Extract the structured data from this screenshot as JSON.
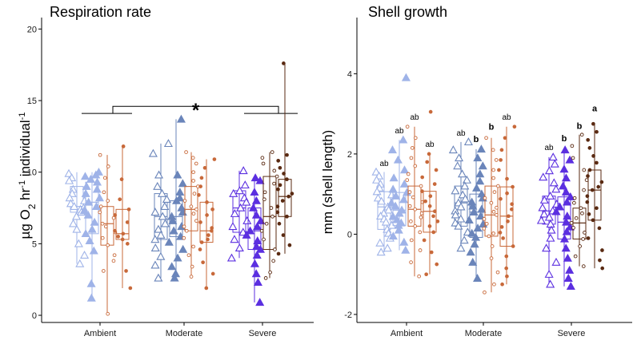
{
  "chart_data": [
    {
      "type": "box",
      "title": "Respiration rate",
      "ylabel": "µg O2 hr-1 individual-1",
      "ylabel_parts": {
        "a": "µg O",
        "b": "2",
        "c": " hr",
        "d": "-1",
        "e": " individual",
        "f": "-1"
      },
      "ylim": [
        -0.5,
        20.8
      ],
      "yticks": [
        0,
        5,
        10,
        15,
        20
      ],
      "categories": [
        "Ambient",
        "Moderate",
        "Severe"
      ],
      "annotation": {
        "text": "*",
        "between": [
          "Ambient",
          "Severe"
        ],
        "y": 14.1,
        "bracket_top": 14.6
      },
      "groups": [
        {
          "category": "Ambient",
          "boxes": [
            {
              "shape": "triangle-open",
              "color": "#9fb3e8",
              "min": 3.6,
              "q1": 7.2,
              "median": 7.6,
              "q3": 9.0,
              "max": 10.0,
              "points": [
                9.9,
                9.6,
                9.4,
                8.8,
                8.5,
                8.2,
                8.0,
                7.8,
                7.6,
                7.5,
                7.4,
                7.2,
                6.9,
                6.4,
                6.0,
                5.0,
                4.2,
                3.6
              ]
            },
            {
              "shape": "triangle-filled",
              "color": "#9fb3e8",
              "min": 1.2,
              "q1": 5.7,
              "median": 7.9,
              "q3": 9.3,
              "max": 10.0,
              "points": [
                10.0,
                9.8,
                9.7,
                9.5,
                9.3,
                9.0,
                8.8,
                8.5,
                8.2,
                7.9,
                7.6,
                7.3,
                7.0,
                6.5,
                6.0,
                5.7,
                5.2,
                4.5,
                2.2,
                1.2
              ]
            },
            {
              "shape": "circle-open",
              "color": "#c8693a",
              "min": 0.1,
              "q1": 4.9,
              "median": 6.4,
              "q3": 7.6,
              "max": 11.2,
              "points": [
                11.2,
                10.4,
                9.6,
                8.6,
                8.0,
                7.6,
                7.2,
                6.8,
                6.4,
                6.2,
                5.8,
                5.4,
                4.9,
                4.2,
                3.8,
                3.1,
                0.1
              ]
            },
            {
              "shape": "circle-filled",
              "color": "#c8693a",
              "min": 1.9,
              "q1": 5.3,
              "median": 5.7,
              "q3": 7.4,
              "max": 11.8,
              "points": [
                11.8,
                9.5,
                8.1,
                7.4,
                7.0,
                6.5,
                5.9,
                5.7,
                5.5,
                5.3,
                5.0,
                3.1,
                1.9
              ]
            }
          ]
        },
        {
          "category": "Moderate",
          "boxes": [
            {
              "shape": "triangle-open",
              "color": "#6a85ba",
              "min": 2.6,
              "q1": 5.3,
              "median": 6.9,
              "q3": 8.5,
              "max": 12.0,
              "points": [
                12.0,
                11.3,
                9.8,
                9.0,
                8.5,
                8.1,
                7.6,
                7.2,
                6.9,
                6.4,
                6.0,
                5.6,
                5.3,
                4.7,
                4.1,
                3.5,
                2.6
              ]
            },
            {
              "shape": "triangle-filled",
              "color": "#6a85ba",
              "min": 2.6,
              "q1": 5.5,
              "median": 6.9,
              "q3": 8.0,
              "max": 13.7,
              "points": [
                13.7,
                9.8,
                9.2,
                8.6,
                8.2,
                8.0,
                7.5,
                7.2,
                6.9,
                6.6,
                6.2,
                5.9,
                5.5,
                5.1,
                4.6,
                4.0,
                3.4,
                2.9,
                2.6
              ]
            },
            {
              "shape": "circle-open",
              "color": "#c8693a",
              "min": 2.7,
              "q1": 5.9,
              "median": 7.4,
              "q3": 9.0,
              "max": 11.4,
              "points": [
                11.4,
                11.0,
                10.6,
                10.0,
                9.4,
                9.0,
                8.5,
                8.0,
                7.6,
                7.4,
                7.1,
                6.6,
                6.2,
                5.9,
                5.4,
                4.8,
                4.2,
                3.4,
                2.7
              ]
            },
            {
              "shape": "circle-filled",
              "color": "#c8693a",
              "min": 1.9,
              "q1": 5.1,
              "median": 5.9,
              "q3": 7.9,
              "max": 10.9,
              "points": [
                10.9,
                10.3,
                9.6,
                9.0,
                8.4,
                7.9,
                7.4,
                7.0,
                6.5,
                6.1,
                5.9,
                5.6,
                5.3,
                5.1,
                4.6,
                3.7,
                2.9,
                1.9
              ]
            }
          ]
        },
        {
          "category": "Severe",
          "boxes": [
            {
              "shape": "triangle-open",
              "color": "#5b2fe0",
              "min": 4.0,
              "q1": 5.8,
              "median": 7.5,
              "q3": 8.7,
              "max": 10.1,
              "points": [
                10.1,
                9.1,
                8.7,
                8.5,
                8.2,
                7.9,
                7.5,
                7.1,
                6.6,
                6.2,
                5.8,
                5.3,
                4.7,
                4.0
              ]
            },
            {
              "shape": "triangle-filled",
              "color": "#5b2fe0",
              "min": 0.9,
              "q1": 4.6,
              "median": 5.9,
              "q3": 7.5,
              "max": 9.6,
              "points": [
                9.6,
                9.4,
                8.6,
                8.0,
                7.5,
                7.0,
                6.6,
                6.2,
                5.9,
                5.6,
                5.2,
                4.8,
                4.6,
                4.2,
                3.6,
                2.9,
                2.3,
                0.9
              ]
            },
            {
              "shape": "circle-open",
              "color": "#5a2a12",
              "min": 2.6,
              "q1": 4.6,
              "median": 6.9,
              "q3": 9.7,
              "max": 11.4,
              "points": [
                11.4,
                11.0,
                10.6,
                10.1,
                9.7,
                9.2,
                8.6,
                8.1,
                7.5,
                6.9,
                6.4,
                5.9,
                5.3,
                4.6,
                3.8,
                3.0,
                2.6
              ]
            },
            {
              "shape": "circle-filled",
              "color": "#5a2a12",
              "min": 4.3,
              "q1": 6.9,
              "median": 8.3,
              "q3": 9.5,
              "max": 17.6,
              "points": [
                17.6,
                11.2,
                10.8,
                10.3,
                9.9,
                9.5,
                9.1,
                8.8,
                8.5,
                8.3,
                8.0,
                7.6,
                7.2,
                6.9,
                6.4,
                5.6,
                4.9,
                4.3
              ]
            }
          ]
        }
      ]
    },
    {
      "type": "box",
      "title": "Shell growth",
      "ylabel": "mm (shell length)",
      "ylim": [
        -2.2,
        5.4
      ],
      "yticks": [
        -2,
        0,
        2,
        4
      ],
      "categories": [
        "Ambient",
        "Moderate",
        "Severe"
      ],
      "groups": [
        {
          "category": "Ambient",
          "boxes": [
            {
              "shape": "triangle-open",
              "color": "#9fb3e8",
              "min": -0.45,
              "q1": 0.12,
              "median": 0.68,
              "q3": 1.06,
              "max": 1.55,
              "letter": "ab",
              "letter_y": 1.7,
              "bold": false,
              "points": [
                1.55,
                1.45,
                1.35,
                1.25,
                1.15,
                1.06,
                0.98,
                0.9,
                0.82,
                0.75,
                0.68,
                0.6,
                0.52,
                0.45,
                0.38,
                0.3,
                0.22,
                0.12,
                0.02,
                -0.1,
                -0.22,
                -0.35,
                -0.45
              ]
            },
            {
              "shape": "triangle-filled",
              "color": "#9fb3e8",
              "min": -0.4,
              "q1": 0.22,
              "median": 0.6,
              "q3": 1.04,
              "max": 2.35,
              "letter": "ab",
              "letter_y": 2.52,
              "bold": false,
              "points": [
                3.9,
                2.35,
                2.1,
                1.85,
                1.6,
                1.4,
                1.25,
                1.12,
                1.04,
                0.95,
                0.86,
                0.78,
                0.7,
                0.6,
                0.52,
                0.44,
                0.36,
                0.28,
                0.22,
                0.1,
                -0.05,
                -0.2,
                -0.4
              ]
            },
            {
              "shape": "circle-open",
              "color": "#c8693a",
              "min": -1.05,
              "q1": 0.2,
              "median": 0.62,
              "q3": 1.2,
              "max": 2.68,
              "letter": "ab",
              "letter_y": 2.85,
              "bold": false,
              "points": [
                2.68,
                2.4,
                2.15,
                1.9,
                1.7,
                1.5,
                1.35,
                1.2,
                1.05,
                0.92,
                0.8,
                0.7,
                0.62,
                0.52,
                0.42,
                0.32,
                0.2,
                0.05,
                -0.15,
                -0.4,
                -0.7,
                -1.05
              ]
            },
            {
              "shape": "circle-filled",
              "color": "#c8693a",
              "min": -1.0,
              "q1": 0.05,
              "median": 0.57,
              "q3": 1.07,
              "max": 2.0,
              "letter": "ab",
              "letter_y": 2.18,
              "bold": false,
              "points": [
                3.05,
                2.0,
                1.8,
                1.6,
                1.42,
                1.25,
                1.07,
                0.95,
                0.82,
                0.7,
                0.57,
                0.45,
                0.32,
                0.2,
                0.05,
                -0.15,
                -0.45,
                -0.75,
                -1.0
              ]
            }
          ]
        },
        {
          "category": "Moderate",
          "boxes": [
            {
              "shape": "triangle-open",
              "color": "#6a85ba",
              "min": -0.35,
              "q1": 0.2,
              "median": 0.78,
              "q3": 1.2,
              "max": 2.3,
              "letter": "ab",
              "letter_y": 2.46,
              "bold": false,
              "points": [
                2.3,
                2.1,
                1.9,
                1.7,
                1.5,
                1.35,
                1.2,
                1.08,
                0.98,
                0.88,
                0.78,
                0.68,
                0.58,
                0.48,
                0.38,
                0.28,
                0.2,
                0.05,
                -0.15,
                -0.35
              ]
            },
            {
              "shape": "triangle-filled",
              "color": "#6a85ba",
              "min": -1.1,
              "q1": -0.08,
              "median": 0.55,
              "q3": 1.0,
              "max": 2.12,
              "letter": "b",
              "letter_y": 2.3,
              "bold": true,
              "points": [
                2.12,
                1.9,
                1.7,
                1.5,
                1.32,
                1.15,
                1.0,
                0.9,
                0.8,
                0.7,
                0.62,
                0.55,
                0.45,
                0.35,
                0.25,
                0.15,
                0.02,
                -0.08,
                -0.25,
                -0.45,
                -0.7,
                -1.1
              ]
            },
            {
              "shape": "circle-open",
              "color": "#c8693a",
              "min": -1.45,
              "q1": -0.05,
              "median": 0.48,
              "q3": 1.2,
              "max": 2.4,
              "letter": "b",
              "letter_y": 2.6,
              "bold": true,
              "points": [
                2.4,
                2.1,
                1.85,
                1.6,
                1.4,
                1.2,
                1.05,
                0.9,
                0.78,
                0.66,
                0.56,
                0.48,
                0.38,
                0.26,
                0.14,
                0.02,
                -0.05,
                -0.3,
                -0.6,
                -0.95,
                -1.25,
                -1.45
              ]
            },
            {
              "shape": "circle-filled",
              "color": "#c8693a",
              "min": -1.25,
              "q1": -0.3,
              "median": 0.45,
              "q3": 1.18,
              "max": 2.68,
              "letter": "ab",
              "letter_y": 2.85,
              "bold": false,
              "points": [
                2.68,
                2.4,
                2.1,
                1.85,
                1.6,
                1.38,
                1.18,
                1.02,
                0.88,
                0.75,
                0.62,
                0.45,
                0.32,
                0.18,
                0.04,
                -0.1,
                -0.3,
                -0.55,
                -0.85,
                -1.05,
                -1.25
              ]
            }
          ]
        },
        {
          "category": "Severe",
          "boxes": [
            {
              "shape": "triangle-open",
              "color": "#5b2fe0",
              "min": -1.25,
              "q1": 0.25,
              "median": 0.58,
              "q3": 0.95,
              "max": 1.92,
              "letter": "ab",
              "letter_y": 2.1,
              "bold": false,
              "points": [
                1.92,
                1.75,
                1.58,
                1.42,
                1.28,
                1.12,
                0.95,
                0.85,
                0.75,
                0.66,
                0.58,
                0.5,
                0.42,
                0.34,
                0.25,
                0.1,
                -0.1,
                -0.35,
                -0.7,
                -1.0,
                -1.25
              ]
            },
            {
              "shape": "triangle-filled",
              "color": "#5b2fe0",
              "min": -1.3,
              "q1": -0.12,
              "median": 0.3,
              "q3": 0.93,
              "max": 2.1,
              "letter": "b",
              "letter_y": 2.32,
              "bold": true,
              "points": [
                2.1,
                1.85,
                1.62,
                1.4,
                1.2,
                1.05,
                0.93,
                0.8,
                0.68,
                0.56,
                0.45,
                0.3,
                0.18,
                0.06,
                -0.12,
                -0.35,
                -0.6,
                -0.9,
                -1.1,
                -1.3
              ]
            },
            {
              "shape": "circle-open",
              "color": "#5a2a12",
              "min": -0.8,
              "q1": -0.12,
              "median": 0.28,
              "q3": 0.65,
              "max": 2.48,
              "letter": "b",
              "letter_y": 2.62,
              "bold": true,
              "points": [
                2.48,
                2.2,
                1.9,
                1.6,
                1.35,
                1.1,
                0.9,
                0.78,
                0.65,
                0.52,
                0.4,
                0.28,
                0.16,
                0.04,
                -0.12,
                -0.3,
                -0.55,
                -0.8
              ]
            },
            {
              "shape": "circle-filled",
              "color": "#5a2a12",
              "min": -0.85,
              "q1": 0.35,
              "median": 1.1,
              "q3": 1.6,
              "max": 2.75,
              "letter": "a",
              "letter_y": 3.06,
              "bold": true,
              "points": [
                2.75,
                2.55,
                2.35,
                2.15,
                1.95,
                1.78,
                1.6,
                1.45,
                1.3,
                1.18,
                1.1,
                0.95,
                0.8,
                0.65,
                0.5,
                0.35,
                0.15,
                -0.1,
                -0.4,
                -0.65,
                -0.85
              ]
            }
          ]
        }
      ]
    }
  ]
}
